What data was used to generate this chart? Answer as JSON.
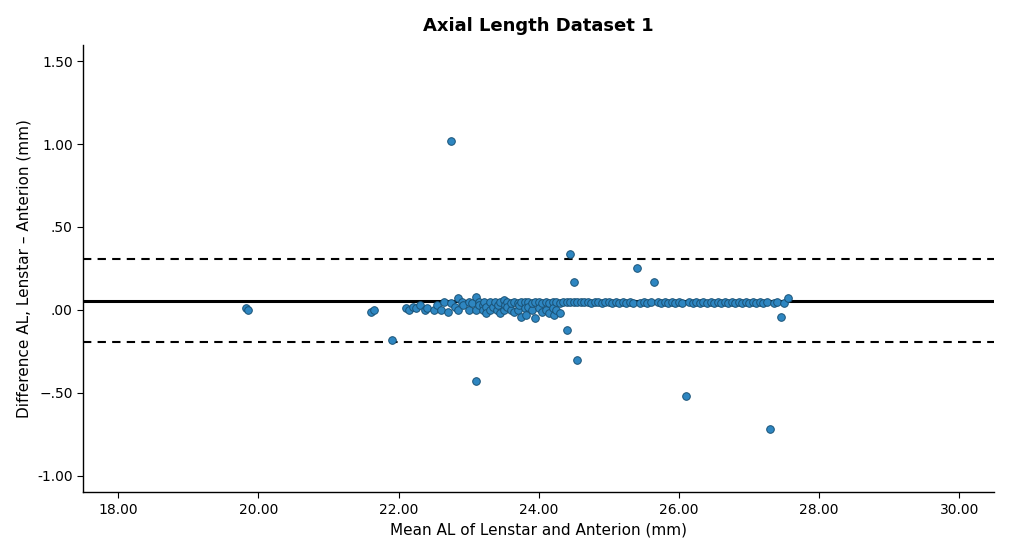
{
  "title": "Axial Length Dataset 1",
  "xlabel": "Mean AL of Lenstar and Anterion (mm)",
  "ylabel": "Difference AL, Lenstar – Anterion (mm)",
  "mean_diff": 0.055,
  "upper_loa": 0.305,
  "lower_loa": -0.195,
  "xlim": [
    17.5,
    30.5
  ],
  "ylim": [
    -1.1,
    1.6
  ],
  "xticks": [
    18.0,
    20.0,
    22.0,
    24.0,
    26.0,
    28.0,
    30.0
  ],
  "yticks": [
    -1.0,
    -0.5,
    0.0,
    0.5,
    1.0,
    1.5
  ],
  "dot_color": "#2E86C1",
  "dot_edgecolor": "#1A5276",
  "background_color": "#ffffff",
  "fig_background": "#ffffff",
  "points": [
    [
      19.82,
      0.01
    ],
    [
      19.85,
      0.0
    ],
    [
      21.6,
      -0.01
    ],
    [
      21.65,
      0.0
    ],
    [
      21.9,
      -0.18
    ],
    [
      22.1,
      0.01
    ],
    [
      22.15,
      0.0
    ],
    [
      22.2,
      0.02
    ],
    [
      22.25,
      0.01
    ],
    [
      22.3,
      0.03
    ],
    [
      22.38,
      0.0
    ],
    [
      22.4,
      0.01
    ],
    [
      22.5,
      0.0
    ],
    [
      22.55,
      0.03
    ],
    [
      22.6,
      0.0
    ],
    [
      22.65,
      0.05
    ],
    [
      22.7,
      -0.01
    ],
    [
      22.75,
      0.04
    ],
    [
      22.8,
      0.02
    ],
    [
      22.85,
      0.0
    ],
    [
      22.85,
      0.07
    ],
    [
      22.9,
      0.05
    ],
    [
      22.92,
      0.03
    ],
    [
      23.0,
      0.0
    ],
    [
      23.0,
      0.05
    ],
    [
      23.05,
      0.04
    ],
    [
      23.1,
      0.08
    ],
    [
      23.1,
      0.0
    ],
    [
      23.15,
      0.05
    ],
    [
      23.15,
      0.03
    ],
    [
      23.2,
      0.03
    ],
    [
      23.2,
      0.0
    ],
    [
      23.22,
      0.05
    ],
    [
      23.25,
      0.02
    ],
    [
      23.25,
      -0.02
    ],
    [
      23.3,
      0.05
    ],
    [
      23.3,
      0.0
    ],
    [
      23.35,
      0.02
    ],
    [
      23.38,
      0.05
    ],
    [
      23.4,
      0.0
    ],
    [
      23.42,
      0.03
    ],
    [
      23.45,
      0.05
    ],
    [
      23.45,
      -0.02
    ],
    [
      23.5,
      0.06
    ],
    [
      23.5,
      0.0
    ],
    [
      23.52,
      0.03
    ],
    [
      23.55,
      0.05
    ],
    [
      23.55,
      0.02
    ],
    [
      23.6,
      0.0
    ],
    [
      23.6,
      0.04
    ],
    [
      23.65,
      0.05
    ],
    [
      23.65,
      -0.01
    ],
    [
      23.7,
      0.04
    ],
    [
      23.7,
      0.0
    ],
    [
      23.72,
      0.03
    ],
    [
      23.75,
      0.05
    ],
    [
      23.75,
      -0.04
    ],
    [
      23.8,
      0.05
    ],
    [
      23.8,
      0.01
    ],
    [
      23.82,
      -0.03
    ],
    [
      23.85,
      0.05
    ],
    [
      23.85,
      0.02
    ],
    [
      23.9,
      0.0
    ],
    [
      23.9,
      0.04
    ],
    [
      23.95,
      0.05
    ],
    [
      23.95,
      -0.05
    ],
    [
      24.0,
      0.05
    ],
    [
      24.0,
      0.01
    ],
    [
      24.05,
      0.04
    ],
    [
      24.05,
      -0.01
    ],
    [
      24.1,
      0.05
    ],
    [
      24.1,
      0.0
    ],
    [
      24.15,
      0.04
    ],
    [
      24.15,
      -0.02
    ],
    [
      24.2,
      0.05
    ],
    [
      24.2,
      0.01
    ],
    [
      24.22,
      -0.03
    ],
    [
      24.25,
      0.05
    ],
    [
      24.25,
      0.0
    ],
    [
      24.3,
      0.04
    ],
    [
      24.3,
      -0.02
    ],
    [
      24.35,
      0.05
    ],
    [
      24.4,
      0.05
    ],
    [
      24.4,
      -0.12
    ],
    [
      24.45,
      0.05
    ],
    [
      24.45,
      0.34
    ],
    [
      24.5,
      0.05
    ],
    [
      24.5,
      0.17
    ],
    [
      24.55,
      0.05
    ],
    [
      24.55,
      -0.3
    ],
    [
      24.6,
      0.05
    ],
    [
      24.65,
      0.05
    ],
    [
      24.7,
      0.05
    ],
    [
      24.75,
      0.04
    ],
    [
      24.8,
      0.05
    ],
    [
      24.85,
      0.05
    ],
    [
      24.9,
      0.04
    ],
    [
      24.95,
      0.05
    ],
    [
      25.0,
      0.05
    ],
    [
      25.05,
      0.04
    ],
    [
      25.1,
      0.05
    ],
    [
      25.15,
      0.04
    ],
    [
      25.2,
      0.05
    ],
    [
      25.25,
      0.04
    ],
    [
      25.3,
      0.05
    ],
    [
      25.35,
      0.04
    ],
    [
      25.4,
      0.25
    ],
    [
      25.45,
      0.04
    ],
    [
      25.5,
      0.05
    ],
    [
      25.55,
      0.04
    ],
    [
      25.6,
      0.05
    ],
    [
      25.65,
      0.17
    ],
    [
      25.7,
      0.05
    ],
    [
      25.75,
      0.04
    ],
    [
      25.8,
      0.05
    ],
    [
      25.85,
      0.04
    ],
    [
      25.9,
      0.05
    ],
    [
      25.95,
      0.04
    ],
    [
      26.0,
      0.05
    ],
    [
      26.05,
      0.04
    ],
    [
      26.1,
      -0.52
    ],
    [
      26.15,
      0.05
    ],
    [
      26.2,
      0.04
    ],
    [
      26.25,
      0.05
    ],
    [
      26.3,
      0.04
    ],
    [
      26.35,
      0.05
    ],
    [
      26.4,
      0.04
    ],
    [
      26.45,
      0.05
    ],
    [
      26.5,
      0.04
    ],
    [
      26.55,
      0.05
    ],
    [
      26.6,
      0.04
    ],
    [
      26.65,
      0.05
    ],
    [
      26.7,
      0.04
    ],
    [
      26.75,
      0.05
    ],
    [
      26.8,
      0.04
    ],
    [
      26.85,
      0.05
    ],
    [
      26.9,
      0.04
    ],
    [
      26.95,
      0.05
    ],
    [
      27.0,
      0.04
    ],
    [
      27.05,
      0.05
    ],
    [
      27.1,
      0.04
    ],
    [
      27.15,
      0.05
    ],
    [
      27.2,
      0.04
    ],
    [
      27.25,
      0.05
    ],
    [
      27.3,
      -0.72
    ],
    [
      27.35,
      0.04
    ],
    [
      27.4,
      0.05
    ],
    [
      27.45,
      -0.04
    ],
    [
      27.5,
      0.04
    ],
    [
      27.55,
      0.07
    ],
    [
      22.75,
      1.02
    ],
    [
      23.1,
      -0.43
    ]
  ]
}
